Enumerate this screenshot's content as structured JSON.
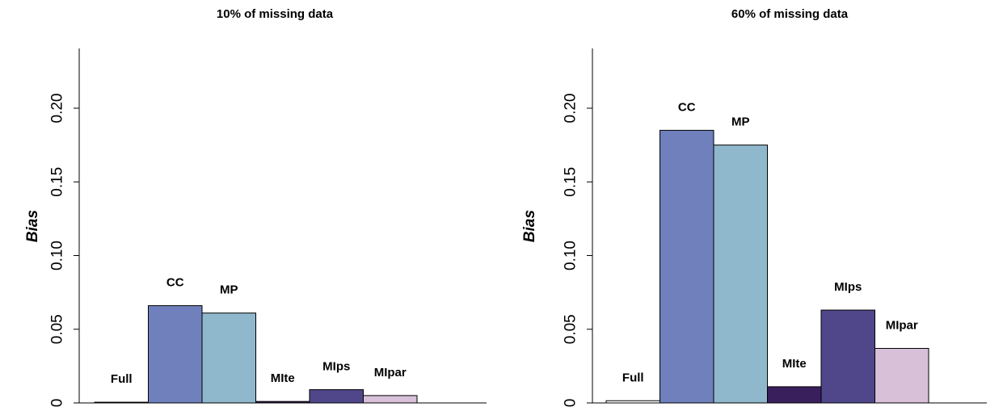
{
  "chart_data": [
    {
      "type": "bar",
      "title": "10% of missing data",
      "ylabel": "Bias",
      "xlabel": "",
      "ylim": [
        0,
        0.2
      ],
      "yticks": [
        "0",
        "0.05",
        "0.10",
        "0.15",
        "0.20"
      ],
      "categories": [
        "Full",
        "CC",
        "MP",
        "MIte",
        "MIps",
        "MIpar"
      ],
      "values": [
        0.0005,
        0.066,
        0.061,
        0.001,
        0.009,
        0.005
      ],
      "colors": [
        "#ffffff",
        "#6f80bc",
        "#90b8cc",
        "#3a1f5d",
        "#4f478a",
        "#d7c0d8"
      ],
      "grid": false,
      "legend": "none"
    },
    {
      "type": "bar",
      "title": "60% of missing data",
      "ylabel": "Bias",
      "xlabel": "",
      "ylim": [
        0,
        0.2
      ],
      "yticks": [
        "0",
        "0.05",
        "0.10",
        "0.15",
        "0.20"
      ],
      "categories": [
        "Full",
        "CC",
        "MP",
        "MIte",
        "MIps",
        "MIpar"
      ],
      "values": [
        0.0015,
        0.185,
        0.175,
        0.011,
        0.063,
        0.037
      ],
      "colors": [
        "#ffffff",
        "#6f80bc",
        "#90b8cc",
        "#3a1f5d",
        "#4f478a",
        "#d7c0d8"
      ],
      "grid": false,
      "legend": "none"
    }
  ]
}
